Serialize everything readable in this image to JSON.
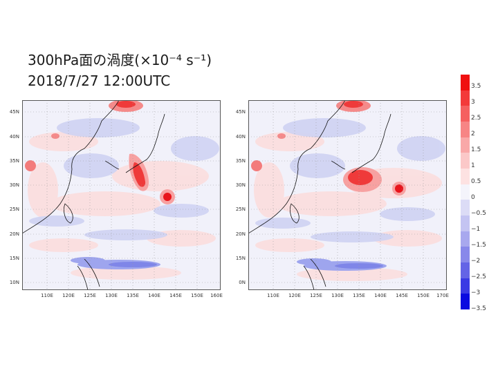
{
  "title": {
    "line1": "300hPa面の渦度(×10⁻⁴ s⁻¹)",
    "line2": "2018/7/27 12:00UTC"
  },
  "maps": {
    "left": {
      "lat_labels": [
        "45N",
        "40N",
        "35N",
        "30N",
        "25N",
        "20N",
        "15N",
        "10N"
      ],
      "lon_labels": [
        "110E",
        "120E",
        "125E",
        "130E",
        "135E",
        "140E",
        "145E",
        "150E",
        "160E"
      ],
      "features": [
        {
          "kind": "positive",
          "strength": "strong",
          "label": "elongated maximum over Japan"
        },
        {
          "kind": "positive",
          "strength": "strong",
          "label": "typhoon vortex"
        },
        {
          "kind": "positive",
          "strength": "strong",
          "label": "northern maximum"
        },
        {
          "kind": "negative",
          "strength": "moderate",
          "label": "southern band"
        }
      ]
    },
    "right": {
      "lat_labels": [
        "45N",
        "40N",
        "35N",
        "30N",
        "25N",
        "20N",
        "15N",
        "0N"
      ],
      "lon_labels": [
        "110E",
        "120E",
        "125E",
        "130E",
        "135E",
        "140E",
        "145E",
        "150E",
        "170E"
      ],
      "features": [
        {
          "kind": "positive",
          "strength": "strong",
          "label": "maximum south of Japan"
        },
        {
          "kind": "positive",
          "strength": "strong",
          "label": "typhoon vortex"
        },
        {
          "kind": "positive",
          "strength": "strong",
          "label": "northern maximum"
        },
        {
          "kind": "negative",
          "strength": "moderate",
          "label": "southern band"
        }
      ]
    }
  },
  "colorbar": {
    "levels": [
      "3.5",
      "3",
      "2.5",
      "2",
      "1.5",
      "1",
      "0.5",
      "0",
      "−0.5",
      "−1",
      "−1.5",
      "−2",
      "−2.5",
      "−3",
      "−3.5"
    ],
    "colors": [
      "#f01010",
      "#f33a3a",
      "#f56060",
      "#f78585",
      "#f9a8a8",
      "#fbc8c8",
      "#fde2e2",
      "#f4f4fb",
      "#dcdcf6",
      "#c4c4f2",
      "#a8a8ee",
      "#8888ea",
      "#6464e6",
      "#3a3ae4",
      "#0a0ae0"
    ]
  },
  "colors": {
    "positive_strong": "#e8141b",
    "positive_mid": "#f58a8a",
    "positive_weak": "#fcd7d7",
    "negative_weak": "#d9dcf5",
    "negative_mid": "#9fa6ee",
    "background_field": "#f1f1fa"
  }
}
